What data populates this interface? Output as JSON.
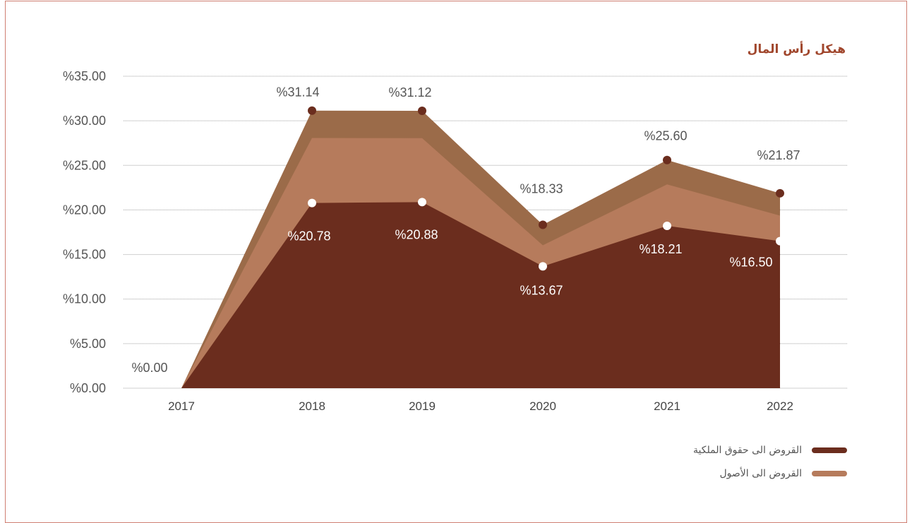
{
  "colors": {
    "equity_series": "#6b2d1e",
    "assets_series": "#b67b5c",
    "overlap_band": "#9b6b49",
    "white_marker": "#ffffff",
    "grid": "#a0a0a0",
    "title": "#a0462c",
    "frame": "#cf7f72"
  },
  "chart_data": {
    "type": "area",
    "title": "هيكل رأس المال",
    "categories": [
      "2017",
      "2018",
      "2019",
      "2020",
      "2021",
      "2022"
    ],
    "y_ticks": [
      "%0.00",
      "%5.00",
      "%10.00",
      "%15.00",
      "%20.00",
      "%25.00",
      "%30.00",
      "%35.00"
    ],
    "ylim": [
      0,
      35
    ],
    "grid": true,
    "legend_position": "bottom-right",
    "series": [
      {
        "name": "القروض الى حقوق الملكية",
        "values": [
          0,
          31.14,
          31.12,
          18.33,
          25.6,
          21.87
        ],
        "labels": [
          "%0.00",
          "%31.14",
          "%31.12",
          "%18.33",
          "%25.60",
          "%21.87"
        ]
      },
      {
        "name": "القروض الى الأصول",
        "values": [
          0,
          20.78,
          20.88,
          13.67,
          18.21,
          16.5
        ],
        "labels": [
          "",
          "%20.78",
          "%20.88",
          "%13.67",
          "%18.21",
          "%16.50"
        ]
      }
    ]
  }
}
